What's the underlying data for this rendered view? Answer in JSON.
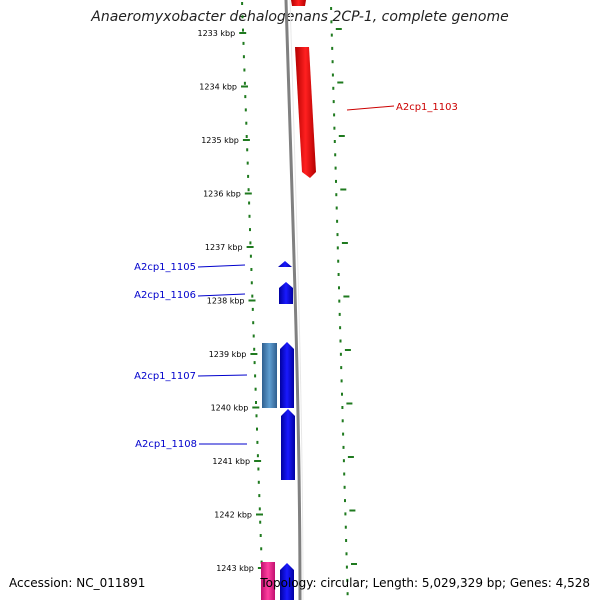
{
  "title": "Anaeromyxobacter dehalogenans 2CP-1, complete genome",
  "accession": "Accession: NC_011891",
  "summary": "Topology: circular; Length: 5,029,329 bp; Genes: 4,528",
  "colors": {
    "tick": "#1f7a1f",
    "backbone": "#808080",
    "forward_gene": "#ff0000",
    "reverse_gene": "#0000ff",
    "rna_gene": "#4682b4",
    "other_gene": "#ff1493",
    "label_red": "#cc0000",
    "label_blue": "#0000cc"
  },
  "ticks": [
    "1233 kbp",
    "1234 kbp",
    "1235 kbp",
    "1236 kbp",
    "1237 kbp",
    "1238 kbp",
    "1239 kbp",
    "1240 kbp",
    "1241 kbp",
    "1242 kbp",
    "1243 kbp"
  ],
  "gene_labels": [
    {
      "name": "A2cp1_1103",
      "color": "#cc0000"
    },
    {
      "name": "A2cp1_1105",
      "color": "#0000cc"
    },
    {
      "name": "A2cp1_1106",
      "color": "#0000cc"
    },
    {
      "name": "A2cp1_1107",
      "color": "#0000cc"
    },
    {
      "name": "A2cp1_1108",
      "color": "#0000cc"
    }
  ]
}
